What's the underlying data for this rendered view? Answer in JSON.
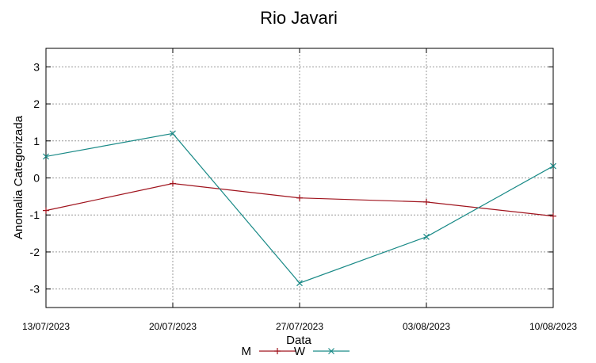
{
  "chart_data": {
    "type": "line",
    "title": "Rio Javari",
    "xlabel": "Data",
    "ylabel": "Anomalia Categorizada",
    "categories": [
      "13/07/2023",
      "20/07/2023",
      "27/07/2023",
      "03/08/2023",
      "10/08/2023"
    ],
    "ylim": [
      -3.5,
      3.5
    ],
    "yticks": [
      3,
      2,
      1,
      0,
      -1,
      -2,
      -3
    ],
    "grid": true,
    "legend_position": "bottom-center",
    "series": [
      {
        "name": "M",
        "color": "#a0141e",
        "marker": "plus",
        "values": [
          -0.88,
          -0.15,
          -0.54,
          -0.65,
          -1.03
        ]
      },
      {
        "name": "W",
        "color": "#1a8a87",
        "marker": "x",
        "values": [
          0.58,
          1.2,
          -2.84,
          -1.59,
          0.32
        ]
      }
    ]
  }
}
